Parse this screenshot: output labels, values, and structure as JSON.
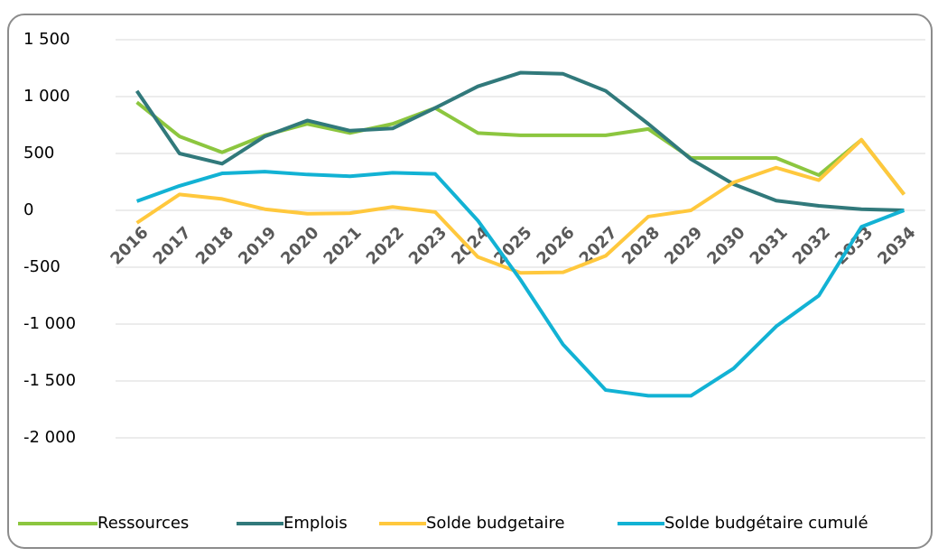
{
  "chart_data": {
    "type": "line",
    "categories": [
      "2016",
      "2017",
      "2018",
      "2019",
      "2020",
      "2021",
      "2022",
      "2023",
      "2024",
      "2025",
      "2026",
      "2027",
      "2028",
      "2029",
      "2030",
      "2031",
      "2032",
      "2033",
      "2034"
    ],
    "series": [
      {
        "name": "Ressources",
        "color": "#8cc63f",
        "values": [
          950,
          650,
          510,
          660,
          760,
          680,
          760,
          900,
          680,
          660,
          660,
          660,
          715,
          460,
          460,
          460,
          310,
          620,
          140
        ]
      },
      {
        "name": "Emplois",
        "color": "#31797b",
        "values": [
          1050,
          500,
          410,
          650,
          790,
          700,
          720,
          900,
          1090,
          1210,
          1200,
          1050,
          760,
          450,
          230,
          85,
          40,
          10,
          0
        ]
      },
      {
        "name": "Solde budgetaire",
        "color": "#ffc83d",
        "values": [
          -110,
          140,
          100,
          10,
          -30,
          -25,
          30,
          -15,
          -410,
          -550,
          -545,
          -400,
          -55,
          0,
          245,
          375,
          265,
          620,
          140
        ]
      },
      {
        "name": "Solde budgétaire cumulé",
        "color": "#12b2d4",
        "values": [
          80,
          215,
          325,
          340,
          315,
          300,
          330,
          320,
          -90,
          -610,
          -1180,
          -1580,
          -1630,
          -1630,
          -1390,
          -1020,
          -750,
          -145,
          0
        ]
      }
    ],
    "ylim": [
      -2000,
      1500
    ],
    "yticks": [
      {
        "value": 1500,
        "label": "1 500"
      },
      {
        "value": 1000,
        "label": "1 000"
      },
      500,
      0,
      -500,
      {
        "value": -1000,
        "label": "-1 000"
      },
      {
        "value": -1500,
        "label": "-1 500"
      },
      {
        "value": -2000,
        "label": "-2 000"
      }
    ],
    "grid": true,
    "legend": "bottom"
  }
}
